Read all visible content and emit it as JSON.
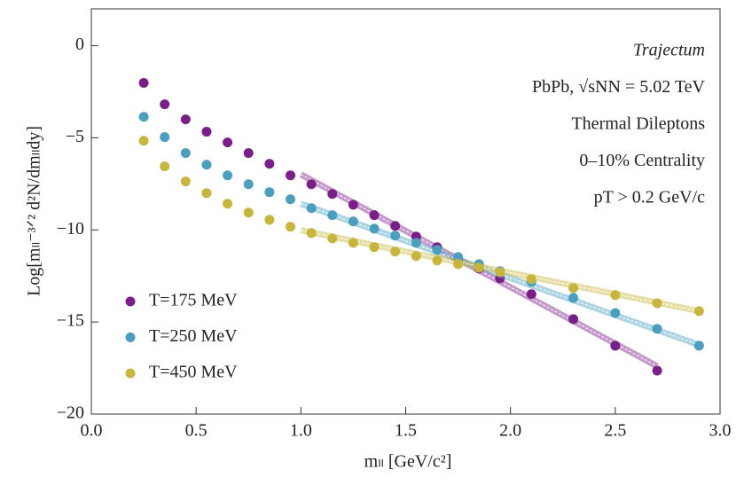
{
  "chart_data": {
    "type": "scatter",
    "xlabel": "mₗₗ [GeV/c²]",
    "ylabel": "Log[mₗₗ⁻³ᐟ² d²N/dmₗₗdy]",
    "annotations": [
      "Trajectum",
      "PbPb, √sNN = 5.02 TeV",
      "Thermal Dileptons",
      "0–10% Centrality",
      "pT > 0.2 GeV/c"
    ],
    "xlim": [
      0,
      3.0
    ],
    "ylim": [
      -20,
      2
    ],
    "xticks": [
      {
        "value": 0,
        "label": "0.0"
      },
      0.5,
      {
        "value": 1,
        "label": "1.0"
      },
      1.5,
      {
        "value": 2,
        "label": "2.0"
      },
      2.5,
      {
        "value": 3,
        "label": "3.0"
      }
    ],
    "yticks": [
      0,
      {
        "value": -5,
        "label": "−5"
      },
      {
        "value": -10,
        "label": "−10"
      },
      {
        "value": -15,
        "label": "−15"
      },
      {
        "value": -20,
        "label": "−20"
      }
    ],
    "legend": "lower left",
    "series": [
      {
        "name": "T=175 MeV",
        "color": "#7a1f89",
        "x": [
          0.25,
          0.35,
          0.45,
          0.55,
          0.65,
          0.75,
          0.85,
          0.95,
          1.05,
          1.15,
          1.25,
          1.35,
          1.45,
          1.55,
          1.65,
          1.75,
          1.85,
          1.95,
          2.1,
          2.3,
          2.5,
          2.7
        ],
        "values": [
          -2.02,
          -3.18,
          -4.0,
          -4.67,
          -5.25,
          -5.83,
          -6.41,
          -7.04,
          -7.52,
          -8.05,
          -8.63,
          -9.2,
          -9.78,
          -10.36,
          -10.94,
          -11.57,
          -12.1,
          -12.63,
          -13.49,
          -14.84,
          -16.29,
          -17.64
        ],
        "fit_x": [
          1.0,
          2.7
        ],
        "fit_values": [
          -6.99,
          -17.4
        ]
      },
      {
        "name": "T=250 MeV",
        "color": "#4a9fbe",
        "x": [
          0.25,
          0.35,
          0.45,
          0.55,
          0.65,
          0.75,
          0.85,
          0.95,
          1.05,
          1.15,
          1.25,
          1.35,
          1.45,
          1.55,
          1.65,
          1.75,
          1.85,
          1.95,
          2.1,
          2.3,
          2.5,
          2.7,
          2.9
        ],
        "values": [
          -3.86,
          -4.96,
          -5.83,
          -6.46,
          -7.04,
          -7.52,
          -7.95,
          -8.34,
          -8.82,
          -9.2,
          -9.54,
          -9.93,
          -10.31,
          -10.7,
          -11.08,
          -11.47,
          -11.86,
          -12.24,
          -12.82,
          -13.69,
          -14.51,
          -15.37,
          -16.29
        ],
        "fit_x": [
          1.0,
          2.9
        ],
        "fit_values": [
          -8.58,
          -16.24
        ]
      },
      {
        "name": "T=450 MeV",
        "color": "#c8b53b",
        "x": [
          0.25,
          0.35,
          0.45,
          0.55,
          0.65,
          0.75,
          0.85,
          0.95,
          1.05,
          1.15,
          1.25,
          1.35,
          1.45,
          1.55,
          1.65,
          1.75,
          1.85,
          1.95,
          2.1,
          2.3,
          2.5,
          2.7,
          2.9
        ],
        "values": [
          -5.16,
          -6.55,
          -7.37,
          -8.0,
          -8.58,
          -9.06,
          -9.45,
          -9.83,
          -10.17,
          -10.46,
          -10.7,
          -10.94,
          -11.18,
          -11.42,
          -11.66,
          -11.86,
          -12.05,
          -12.29,
          -12.67,
          -13.16,
          -13.54,
          -13.98,
          -14.41
        ],
        "fit_x": [
          1.0,
          2.9
        ],
        "fit_values": [
          -10.02,
          -14.41
        ]
      }
    ]
  }
}
